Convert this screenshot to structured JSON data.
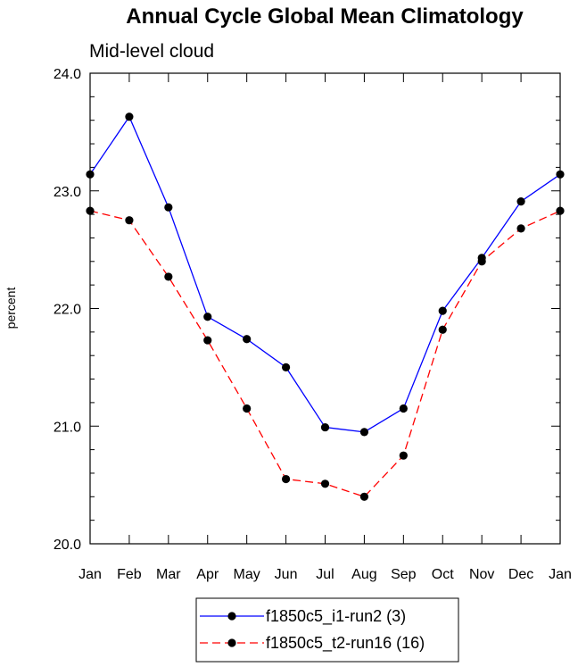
{
  "chart_data": {
    "type": "line",
    "title": "Annual Cycle Global Mean Climatology",
    "subtitle": "Mid-level cloud",
    "xlabel": "",
    "ylabel": "percent",
    "categories": [
      "Jan",
      "Feb",
      "Mar",
      "Apr",
      "May",
      "Jun",
      "Jul",
      "Aug",
      "Sep",
      "Oct",
      "Nov",
      "Dec",
      "Jan"
    ],
    "ylim": [
      20.0,
      24.0
    ],
    "yticks": [
      20.0,
      21.0,
      22.0,
      23.0,
      24.0
    ],
    "ytick_labels": [
      "20.0",
      "21.0",
      "22.0",
      "23.0",
      "24.0"
    ],
    "y_minor_step": 0.2,
    "grid": false,
    "legend_position": "bottom-center",
    "series": [
      {
        "name": "f1850c5_i1-run2 (3)",
        "color": "#0000ff",
        "line_style": "solid",
        "marker": "filled-circle",
        "values": [
          23.14,
          23.63,
          22.86,
          21.93,
          21.74,
          21.5,
          20.99,
          20.95,
          21.15,
          21.98,
          22.43,
          22.91,
          23.14
        ]
      },
      {
        "name": "f1850c5_t2-run16 (16)",
        "color": "#ff0000",
        "line_style": "dashed",
        "marker": "filled-circle",
        "values": [
          22.83,
          22.75,
          22.27,
          21.73,
          21.15,
          20.55,
          20.51,
          20.4,
          20.75,
          21.82,
          22.4,
          22.68,
          22.83
        ]
      }
    ]
  }
}
